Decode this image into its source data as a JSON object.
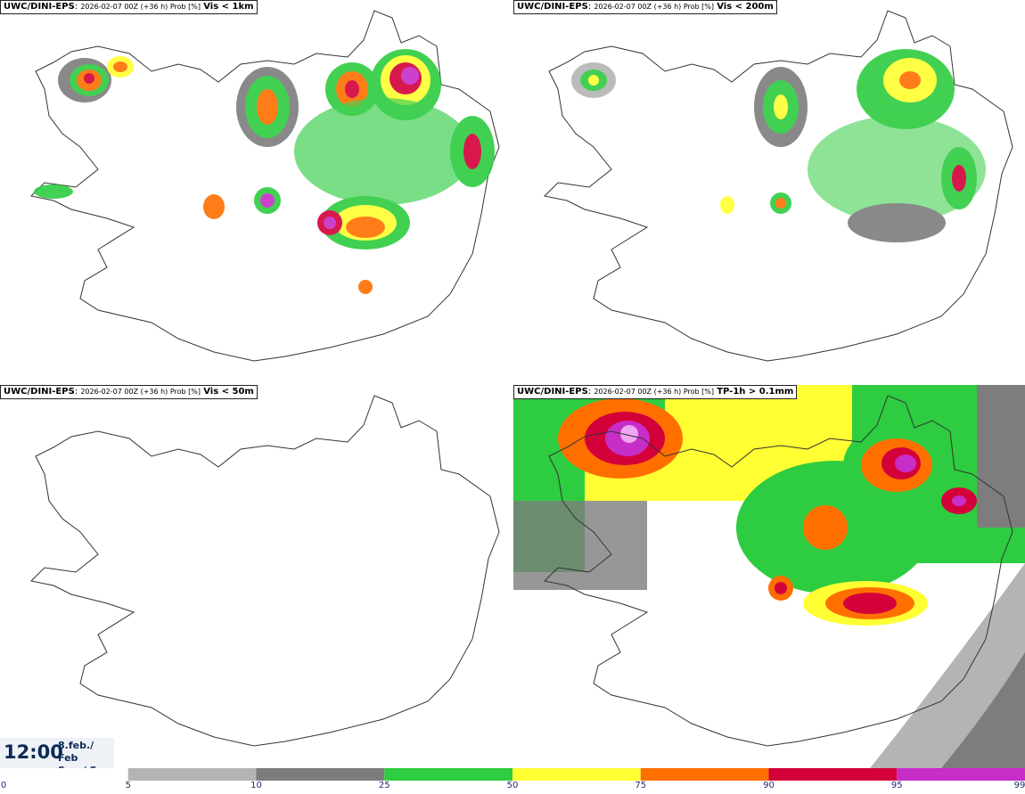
{
  "panels": [
    {
      "source": "UWC/DINI-EPS",
      "meta": "2026-02-07 00Z (+36 h) Prob [%]",
      "variable": "Vis < 1km"
    },
    {
      "source": "UWC/DINI-EPS",
      "meta": "2026-02-07 00Z (+36 h) Prob [%]",
      "variable": "Vis < 200m"
    },
    {
      "source": "UWC/DINI-EPS",
      "meta": "2026-02-07 00Z (+36 h) Prob [%]",
      "variable": "Vis < 50m"
    },
    {
      "source": "UWC/DINI-EPS",
      "meta": "2026-02-07 00Z (+36 h) Prob [%]",
      "variable": "TP-1h > 0.1mm"
    }
  ],
  "valid_time": {
    "clock": "12:00",
    "date_line1": "8.feb./ Feb",
    "date_line2": "Sun./ Sun"
  },
  "legend": {
    "ticks": [
      "0",
      "5",
      "10",
      "25",
      "50",
      "75",
      "90",
      "95",
      "99"
    ],
    "colors": [
      "#ffffff",
      "#b4b4b4",
      "#7d7d7d",
      "#2ecc40",
      "#ffff33",
      "#ff6f00",
      "#d4003a",
      "#c72dc7",
      "#f0a6f0"
    ]
  },
  "colors": {
    "gray_light": "#b4b4b4",
    "gray_dark": "#7d7d7d",
    "green": "#2ecc40",
    "yellow": "#ffff33",
    "orange": "#ff6f00",
    "red": "#d4003a",
    "magenta": "#c72dc7",
    "pink": "#f0a6f0"
  }
}
